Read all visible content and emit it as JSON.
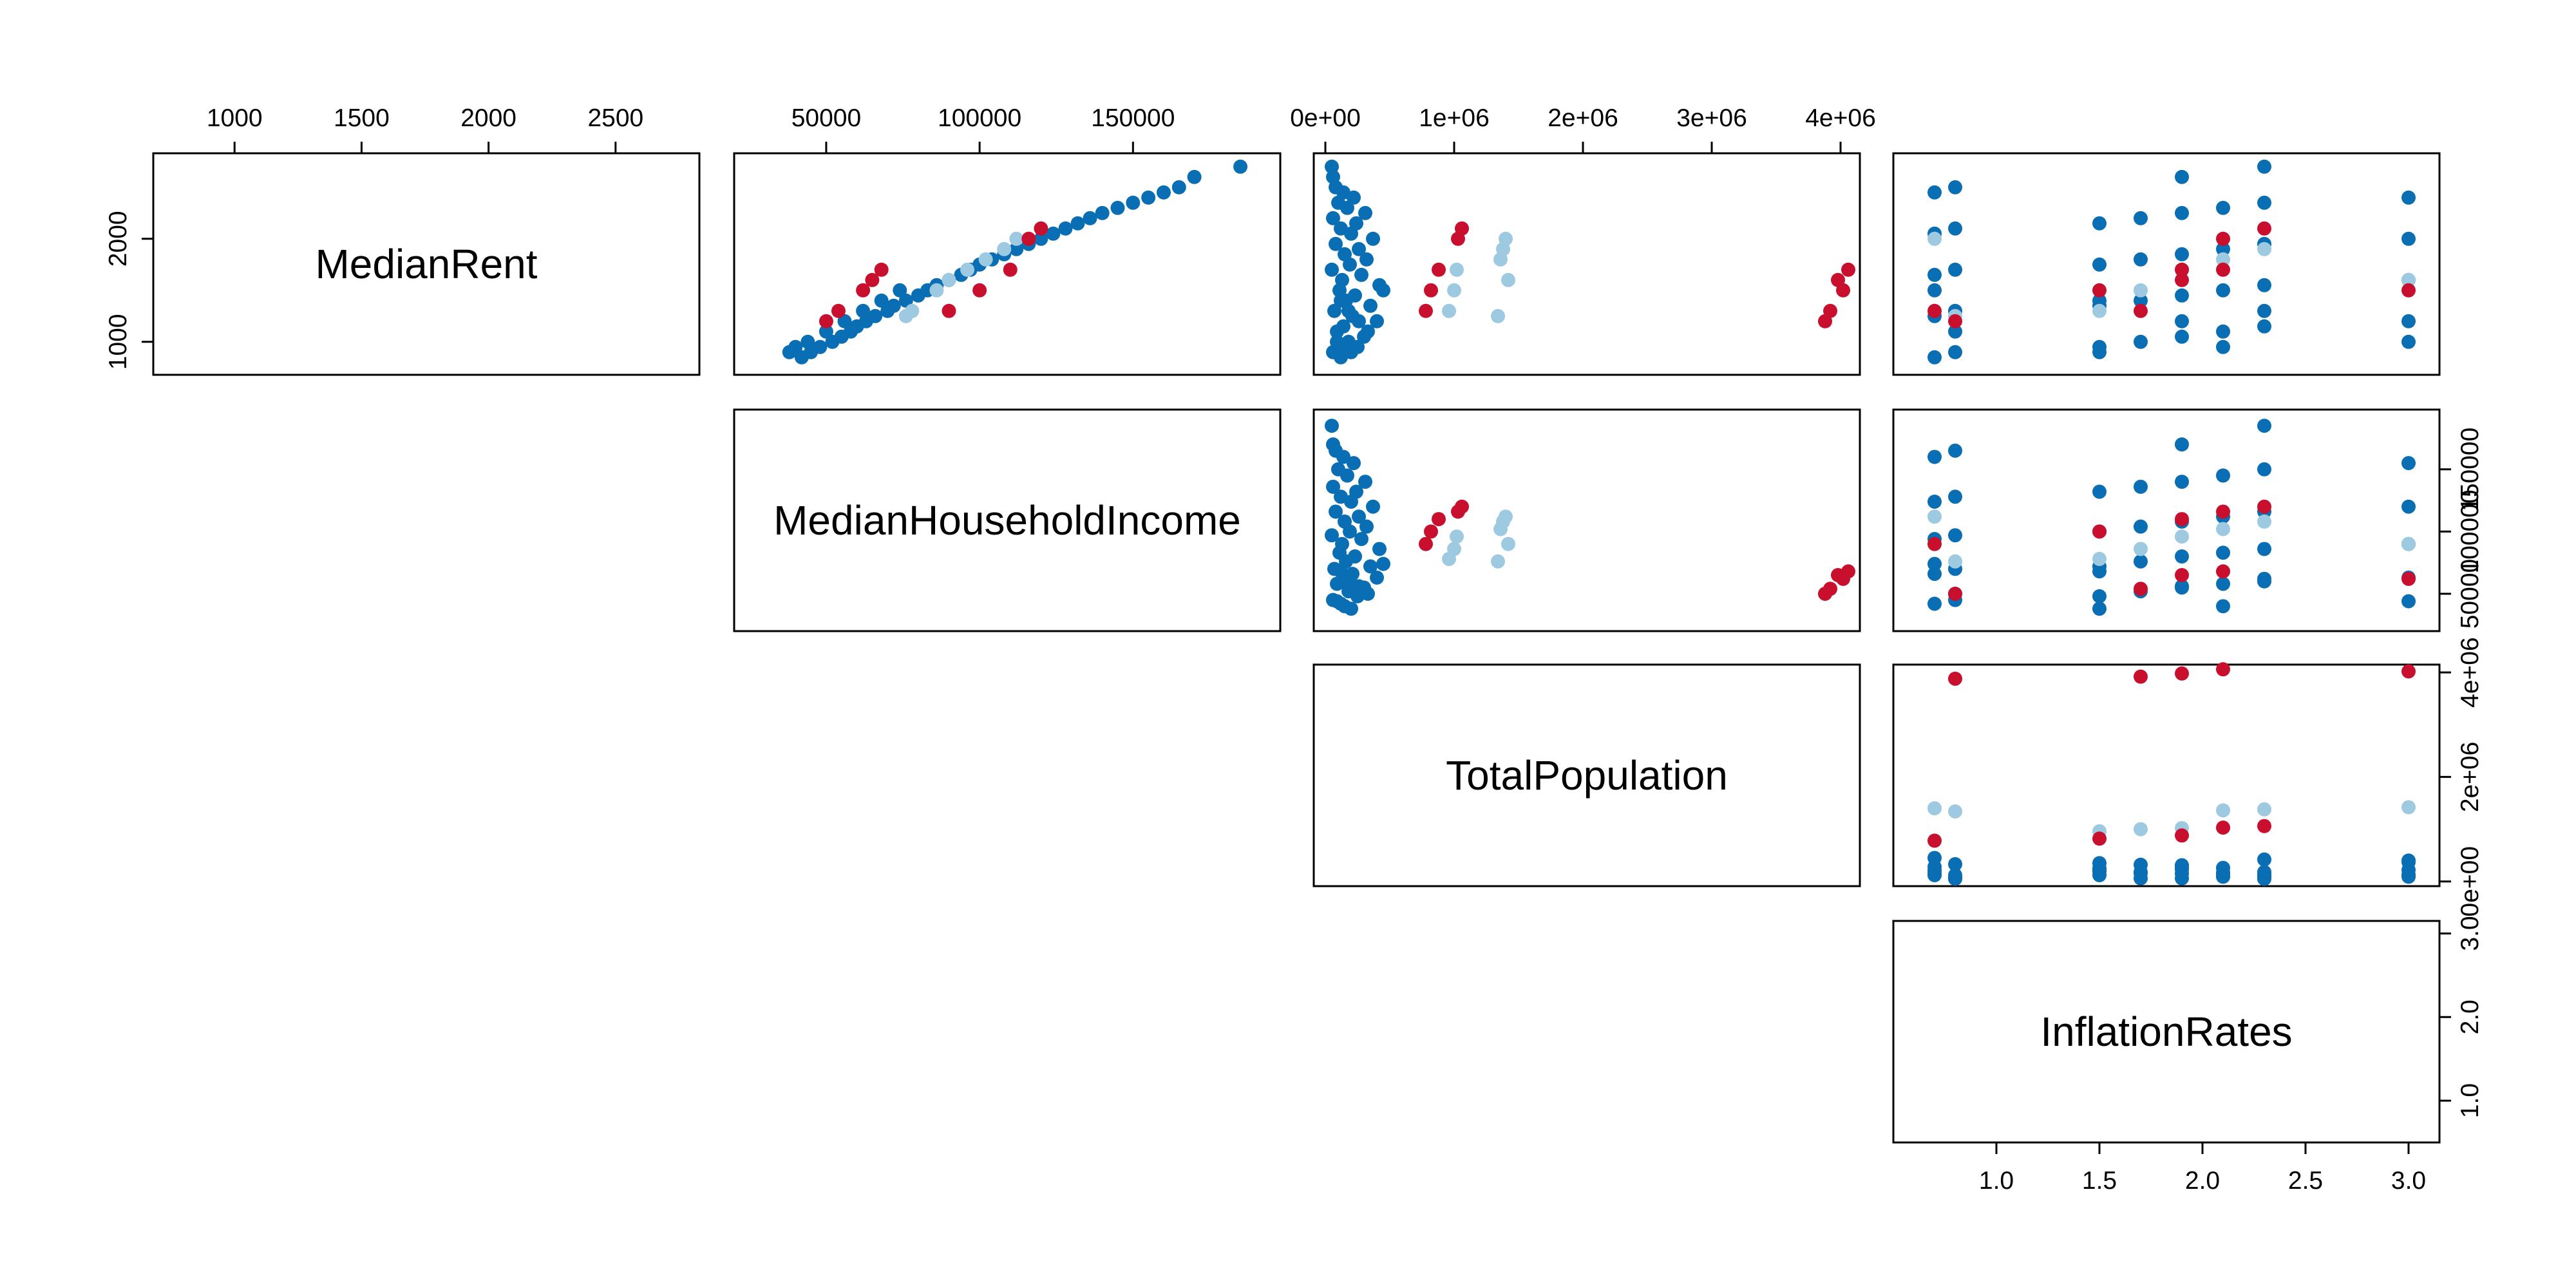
{
  "chart_data": {
    "type": "scatter",
    "title": "",
    "variables": [
      "MedianRent",
      "MedianHouseholdIncome",
      "TotalPopulation",
      "InflationRates"
    ],
    "ranges": {
      "MedianRent": [
        680,
        2830
      ],
      "MedianHouseholdIncome": [
        20000,
        198000
      ],
      "TotalPopulation": [
        -90000,
        4150000
      ],
      "InflationRates": [
        0.5,
        3.15
      ]
    },
    "ticks": {
      "MedianRent": {
        "top": [
          "1000",
          "1500",
          "2000",
          "2500"
        ],
        "left": [
          "1000",
          "2000"
        ]
      },
      "MedianHouseholdIncome": {
        "top": [
          "50000",
          "100000",
          "150000"
        ],
        "right": [
          "50000",
          "100000",
          "150000"
        ]
      },
      "TotalPopulation": {
        "top": [
          "0e+00",
          "1e+06",
          "2e+06",
          "3e+06",
          "4e+06"
        ],
        "right": [
          "0e+00",
          "2e+06",
          "4e+06"
        ]
      },
      "InflationRates": {
        "bottom": [
          "1.0",
          "1.5",
          "2.0",
          "2.5",
          "3.0"
        ],
        "right": [
          "1.0",
          "2.0",
          "3.0"
        ]
      }
    },
    "panels": [
      "upper"
    ],
    "grid": false,
    "legend": "none",
    "colors": {
      "group_a": "#0a6eb4",
      "group_b": "#9ecae1",
      "group_c": "#c8102e",
      "axis": "#000000"
    },
    "series": [
      {
        "color": "#0a6eb4",
        "points": [
          [
            850,
            42000,
            120000,
            0.7
          ],
          [
            900,
            45000,
            60000,
            0.8
          ],
          [
            950,
            48000,
            250000,
            1.5
          ],
          [
            1000,
            52000,
            180000,
            1.7
          ],
          [
            1050,
            55000,
            300000,
            1.9
          ],
          [
            1100,
            58000,
            90000,
            2.1
          ],
          [
            1150,
            60000,
            140000,
            2.3
          ],
          [
            1200,
            63000,
            400000,
            3.0
          ],
          [
            1250,
            66000,
            210000,
            0.7
          ],
          [
            1300,
            70000,
            70000,
            0.8
          ],
          [
            1350,
            72000,
            350000,
            1.5
          ],
          [
            1400,
            76000,
            160000,
            1.7
          ],
          [
            1450,
            80000,
            230000,
            1.9
          ],
          [
            1500,
            83000,
            110000,
            2.1
          ],
          [
            1550,
            86000,
            420000,
            2.3
          ],
          [
            1600,
            90000,
            130000,
            3.0
          ],
          [
            1650,
            94000,
            280000,
            0.7
          ],
          [
            1700,
            97000,
            50000,
            0.8
          ],
          [
            1750,
            100000,
            190000,
            1.5
          ],
          [
            1800,
            104000,
            320000,
            1.7
          ],
          [
            1850,
            108000,
            150000,
            1.9
          ],
          [
            1900,
            112000,
            260000,
            2.1
          ],
          [
            1950,
            116000,
            80000,
            2.3
          ],
          [
            2000,
            120000,
            370000,
            3.0
          ],
          [
            2050,
            124000,
            200000,
            0.7
          ],
          [
            2100,
            128000,
            120000,
            0.8
          ],
          [
            2150,
            132000,
            240000,
            1.5
          ],
          [
            2200,
            136000,
            60000,
            1.7
          ],
          [
            2250,
            140000,
            310000,
            1.9
          ],
          [
            2300,
            145000,
            170000,
            2.1
          ],
          [
            2350,
            150000,
            100000,
            2.3
          ],
          [
            2400,
            155000,
            220000,
            3.0
          ],
          [
            2450,
            160000,
            140000,
            0.7
          ],
          [
            2500,
            165000,
            80000,
            0.8
          ],
          [
            2600,
            170000,
            60000,
            1.9
          ],
          [
            2700,
            185000,
            50000,
            2.3
          ],
          [
            900,
            38000,
            200000,
            1.5
          ],
          [
            950,
            40000,
            150000,
            2.1
          ],
          [
            1000,
            44000,
            90000,
            3.0
          ],
          [
            1100,
            50000,
            330000,
            0.8
          ],
          [
            1200,
            56000,
            260000,
            1.9
          ],
          [
            1300,
            62000,
            180000,
            2.3
          ],
          [
            1400,
            68000,
            120000,
            1.5
          ],
          [
            1500,
            74000,
            450000,
            0.7
          ]
        ]
      },
      {
        "color": "#9ecae1",
        "points": [
          [
            1300,
            78000,
            960000,
            1.5
          ],
          [
            1500,
            86000,
            1000000,
            1.7
          ],
          [
            1700,
            96000,
            1020000,
            1.9
          ],
          [
            1800,
            102000,
            1360000,
            2.1
          ],
          [
            1900,
            108000,
            1380000,
            2.3
          ],
          [
            2000,
            112000,
            1400000,
            0.7
          ],
          [
            1250,
            76000,
            1340000,
            0.8
          ],
          [
            1600,
            90000,
            1420000,
            3.0
          ]
        ]
      },
      {
        "color": "#c8102e",
        "points": [
          [
            1300,
            90000,
            780000,
            0.7
          ],
          [
            1500,
            100000,
            820000,
            1.5
          ],
          [
            1700,
            110000,
            880000,
            1.9
          ],
          [
            2100,
            120000,
            1060000,
            2.3
          ],
          [
            2000,
            116000,
            1030000,
            2.1
          ],
          [
            1200,
            50000,
            3880000,
            0.8
          ],
          [
            1300,
            54000,
            3920000,
            1.7
          ],
          [
            1500,
            62000,
            4020000,
            3.0
          ],
          [
            1700,
            68000,
            4060000,
            2.1
          ],
          [
            1600,
            65000,
            3980000,
            1.9
          ]
        ]
      }
    ]
  }
}
